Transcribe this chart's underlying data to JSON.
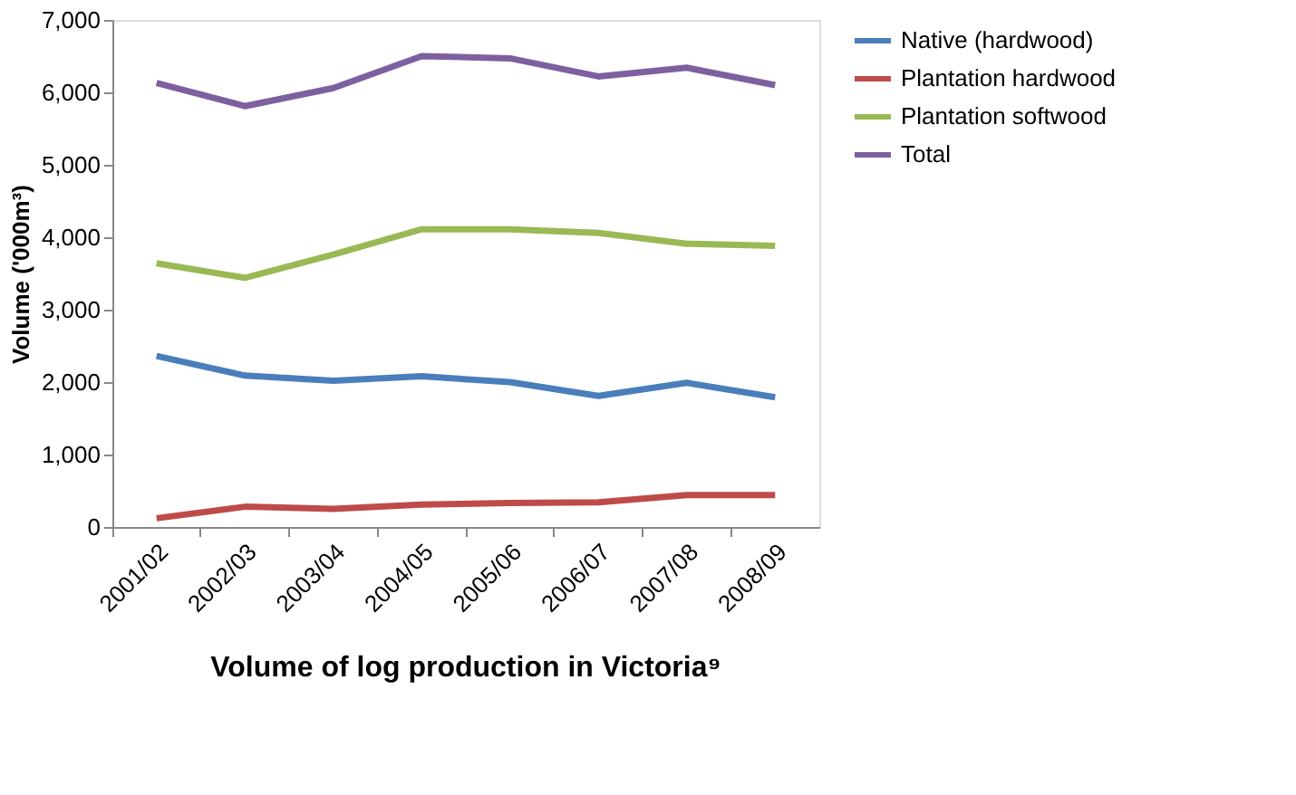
{
  "chart_data": {
    "type": "line",
    "title": "Volume of log production in Victoria⁹",
    "ylabel": "Volume ('000m³)",
    "categories": [
      "2001/02",
      "2002/03",
      "2003/04",
      "2004/05",
      "2005/06",
      "2006/07",
      "2007/08",
      "2008/09"
    ],
    "series": [
      {
        "name": "Native (hardwood)",
        "color": "#4a7ebb",
        "values": [
          2360,
          2090,
          2020,
          2080,
          2000,
          1810,
          1990,
          1790
        ]
      },
      {
        "name": "Plantation hardwood",
        "color": "#be4b48",
        "values": [
          120,
          280,
          250,
          310,
          330,
          340,
          440,
          440
        ]
      },
      {
        "name": "Plantation softwood",
        "color": "#98b954",
        "values": [
          3640,
          3440,
          3760,
          4110,
          4110,
          4060,
          3910,
          3880
        ]
      },
      {
        "name": "Total",
        "color": "#7d60a0",
        "values": [
          6130,
          5810,
          6060,
          6500,
          6470,
          6220,
          6340,
          6100
        ]
      }
    ],
    "ylim": [
      0,
      7000
    ],
    "yticks": [
      0,
      {
        "value": 1000,
        "label": "1,000"
      },
      {
        "value": 2000,
        "label": "2,000"
      },
      {
        "value": 3000,
        "label": "3,000"
      },
      {
        "value": 4000,
        "label": "4,000"
      },
      {
        "value": 5000,
        "label": "5,000"
      },
      {
        "value": 6000,
        "label": "6,000"
      },
      {
        "value": 7000,
        "label": "7,000"
      }
    ],
    "grid": false,
    "legend": "right",
    "marker": "none",
    "line_style": "solid"
  }
}
